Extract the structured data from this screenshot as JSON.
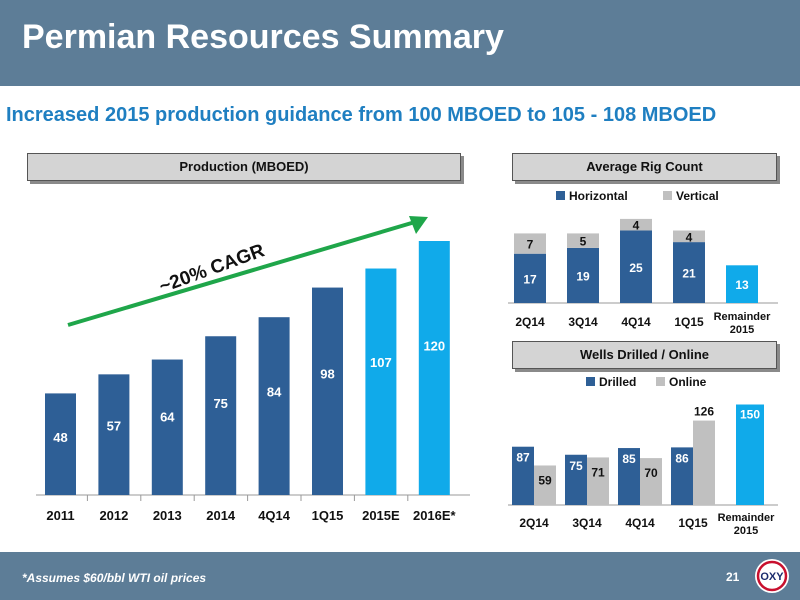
{
  "header": {
    "title": "Permian Resources Summary"
  },
  "subtitle": "Increased 2015 production guidance from 100 MBOED to 105 - 108 MBOED",
  "footer": {
    "footnote": "*Assumes $60/bbl WTI oil prices",
    "page": "21",
    "logo_text": "OXY"
  },
  "colors": {
    "dark_blue": "#2e5f96",
    "light_blue": "#10aaea",
    "gray": "#c0c0c0",
    "arrow_green": "#1fa64a",
    "header_bg": "#5d7d97",
    "subtitle": "#1f7fc1"
  },
  "chart_data": [
    {
      "type": "bar",
      "title": "Production (MBOED)",
      "categories": [
        "2011",
        "2012",
        "2013",
        "2014",
        "4Q14",
        "1Q15",
        "2015E",
        "2016E*"
      ],
      "values": [
        48,
        57,
        64,
        75,
        84,
        98,
        107,
        120
      ],
      "highlight": [
        false,
        false,
        false,
        false,
        false,
        false,
        true,
        true
      ],
      "annotation": "~20% CAGR",
      "ylim": [
        0,
        120
      ]
    },
    {
      "type": "bar",
      "stacked": true,
      "title": "Average Rig Count",
      "categories": [
        "2Q14",
        "3Q14",
        "4Q14",
        "1Q15",
        "Remainder 2015"
      ],
      "legend_position": "top",
      "series": [
        {
          "name": "Horizontal",
          "values": [
            17,
            19,
            25,
            21,
            13
          ]
        },
        {
          "name": "Vertical",
          "values": [
            7,
            5,
            4,
            4,
            null
          ]
        }
      ],
      "highlight": [
        false,
        false,
        false,
        false,
        true
      ],
      "ylim": [
        0,
        29
      ]
    },
    {
      "type": "bar",
      "title": "Wells Drilled / Online",
      "categories": [
        "2Q14",
        "3Q14",
        "4Q14",
        "1Q15",
        "Remainder 2015"
      ],
      "legend_position": "top",
      "series": [
        {
          "name": "Drilled",
          "values": [
            87,
            75,
            85,
            86,
            null
          ]
        },
        {
          "name": "Online",
          "values": [
            59,
            71,
            70,
            126,
            150
          ]
        }
      ],
      "highlight": [
        false,
        false,
        false,
        false,
        true
      ],
      "ylim": [
        0,
        156
      ]
    }
  ]
}
